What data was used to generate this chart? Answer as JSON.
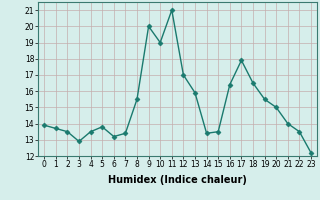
{
  "x": [
    0,
    1,
    2,
    3,
    4,
    5,
    6,
    7,
    8,
    9,
    10,
    11,
    12,
    13,
    14,
    15,
    16,
    17,
    18,
    19,
    20,
    21,
    22,
    23
  ],
  "y": [
    13.9,
    13.7,
    13.5,
    12.9,
    13.5,
    13.8,
    13.2,
    13.4,
    15.5,
    20.0,
    19.0,
    21.0,
    17.0,
    15.9,
    13.4,
    13.5,
    16.4,
    17.9,
    16.5,
    15.5,
    15.0,
    14.0,
    13.5,
    12.2
  ],
  "line_color": "#1a7a6e",
  "marker": "D",
  "marker_size": 2.5,
  "bg_color": "#d6eeeb",
  "grid_color_major": "#c0dbd8",
  "grid_color_minor": "#c8e4e1",
  "xlabel": "Humidex (Indice chaleur)",
  "xlabel_fontsize": 7,
  "ylim": [
    12,
    21.5
  ],
  "yticks": [
    12,
    13,
    14,
    15,
    16,
    17,
    18,
    19,
    20,
    21
  ],
  "xticks": [
    0,
    1,
    2,
    3,
    4,
    5,
    6,
    7,
    8,
    9,
    10,
    11,
    12,
    13,
    14,
    15,
    16,
    17,
    18,
    19,
    20,
    21,
    22,
    23
  ],
  "tick_fontsize": 5.5,
  "line_width": 1.0
}
